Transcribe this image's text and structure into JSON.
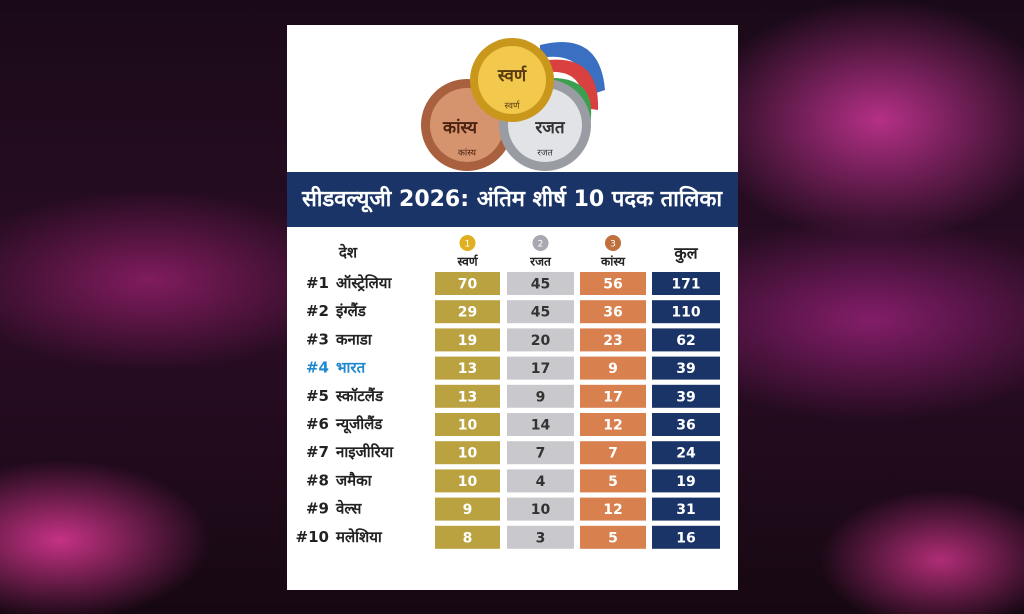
{
  "medal_graphic": {
    "gold": "स्वर्ण",
    "gold_small": "स्वर्ण",
    "bronze": "कांस्य",
    "bronze_small": "कांस्य",
    "silver": "रजत",
    "silver_small": "रजत"
  },
  "title": "सीडवल्यूजी 2026: अंतिम शीर्ष 10 पदक तालिका",
  "table": {
    "headers": [
      "देश",
      "स्वर्ण",
      "रजत",
      "कांस्य",
      "कुल"
    ],
    "header_medals": [
      "1",
      "2",
      "3"
    ],
    "rows": [
      [
        "#1",
        "ऑस्ट्रेलिया",
        70,
        45,
        56,
        171
      ],
      [
        "#2",
        "इंग्लैंड",
        29,
        45,
        36,
        110
      ],
      [
        "#3",
        "कनाडा",
        19,
        20,
        23,
        62
      ],
      [
        "#4",
        "भारत",
        13,
        17,
        9,
        39
      ],
      [
        "#5",
        "स्कॉटलैंड",
        13,
        9,
        17,
        39
      ],
      [
        "#6",
        "न्यूजीलैंड",
        10,
        14,
        12,
        36
      ],
      [
        "#7",
        "नाइजीरिया",
        10,
        7,
        7,
        24
      ],
      [
        "#8",
        "जमैका",
        10,
        4,
        5,
        19
      ],
      [
        "#9",
        "वेल्स",
        9,
        10,
        12,
        31
      ],
      [
        "#10",
        "मलेशिया",
        8,
        3,
        5,
        16
      ]
    ],
    "highlight_row": 3
  }
}
